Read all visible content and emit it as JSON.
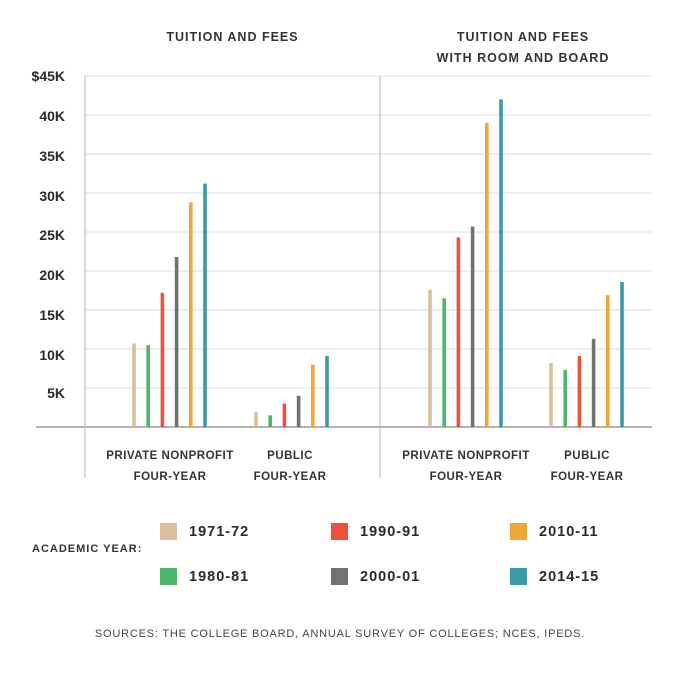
{
  "chart_data": {
    "type": "bar",
    "panels": [
      {
        "title": "TUITION AND FEES",
        "categories": [
          "PRIVATE NONPROFIT|FOUR-YEAR",
          "PUBLIC|FOUR-YEAR"
        ],
        "series": [
          {
            "name": "1971-72",
            "values": [
              10.7,
              1.9
            ]
          },
          {
            "name": "1980-81",
            "values": [
              10.5,
              1.5
            ]
          },
          {
            "name": "1990-91",
            "values": [
              17.2,
              3.0
            ]
          },
          {
            "name": "2000-01",
            "values": [
              21.8,
              4.0
            ]
          },
          {
            "name": "2010-11",
            "values": [
              28.8,
              8.0
            ]
          },
          {
            "name": "2014-15",
            "values": [
              31.2,
              9.1
            ]
          }
        ]
      },
      {
        "title": "TUITION AND FEES|WITH ROOM AND BOARD",
        "categories": [
          "PRIVATE NONPROFIT|FOUR-YEAR",
          "PUBLIC|FOUR-YEAR"
        ],
        "series": [
          {
            "name": "1971-72",
            "values": [
              17.6,
              8.2
            ]
          },
          {
            "name": "1980-81",
            "values": [
              16.5,
              7.3
            ]
          },
          {
            "name": "1990-91",
            "values": [
              24.3,
              9.1
            ]
          },
          {
            "name": "2000-01",
            "values": [
              25.7,
              11.3
            ]
          },
          {
            "name": "2010-11",
            "values": [
              39.0,
              16.9
            ]
          },
          {
            "name": "2014-15",
            "values": [
              42.0,
              18.6
            ]
          }
        ]
      }
    ],
    "y_ticks": [
      "",
      "5K",
      "10K",
      "15K",
      "20K",
      "25K",
      "30K",
      "35K",
      "40K",
      "$45K"
    ],
    "ylim": [
      0,
      45
    ],
    "grid": true,
    "legend_title": "ACADEMIC YEAR:",
    "legend_placement": "bottom",
    "colors": {
      "1971-72": "#d9bf9b",
      "1980-81": "#4db86a",
      "1990-91": "#e8533a",
      "2000-01": "#6e736f",
      "2010-11": "#f2a633",
      "2014-15": "#3a9aa8"
    },
    "source": "SOURCES: THE COLLEGE BOARD, ANNUAL SURVEY OF COLLEGES; NCES, IPEDS."
  }
}
